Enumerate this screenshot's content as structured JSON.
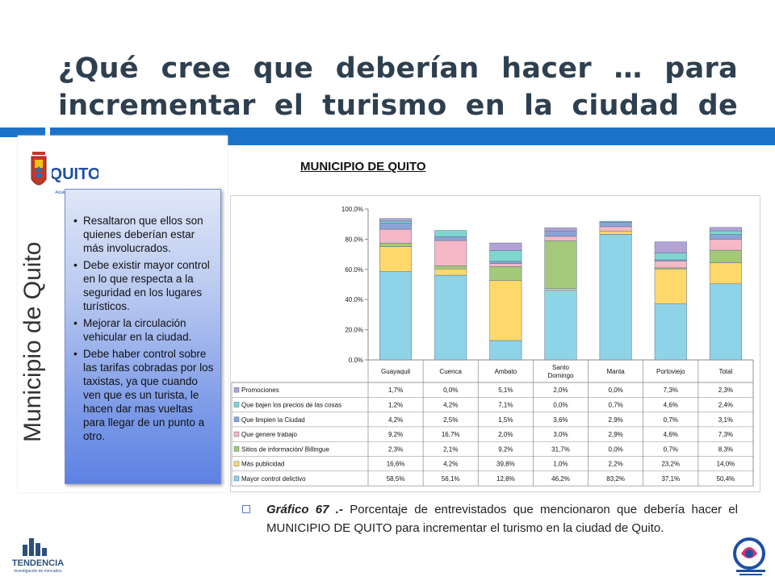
{
  "title": "¿Qué cree que deberían hacer … para incrementar el turismo en la ciudad de Quito?",
  "sidebar": {
    "logo_text": "QUITO",
    "logo_subtext": "Alcaldía Metropolitana",
    "vertical_label": "Municipio de Quito",
    "bullets": [
      "Resaltaron que ellos son quienes deberían estar más involucrados.",
      "Debe existir mayor control en lo que respecta a la seguridad en los lugares turísticos.",
      "Mejorar la circulación vehicular en la ciudad.",
      "Debe haber control sobre las tarifas cobradas por los taxistas, ya que cuando ven que es un turista, le hacen dar mas vueltas para llegar de un punto a otro."
    ]
  },
  "chart_heading": "MUNICIPIO DE QUITO",
  "caption": {
    "label": "Gráfico 67 .-",
    "text": " Porcentaje de entrevistados que mencionaron que debería hacer el MUNICIPIO DE QUITO para incrementar el turismo en la ciudad de Quito."
  },
  "footer": {
    "brand": "TENDENCIA",
    "brand_sub": "investigación de mercados"
  },
  "colors": {
    "title": "#2e3f4f",
    "band": "#1a73c8"
  },
  "chart_data": {
    "type": "bar",
    "stacked": true,
    "categories": [
      "Guayaquil",
      "Cuenca",
      "Ambato",
      "Santo Domingo",
      "Manta",
      "Portoviejo",
      "Total"
    ],
    "ylim": [
      0,
      100
    ],
    "yticks": [
      "0.0%",
      "20.0%",
      "40.0%",
      "60.0%",
      "80.0%",
      "100.0%"
    ],
    "grid": false,
    "legend": "table-below",
    "series": [
      {
        "name": "Mayor control delictivo",
        "color": "#8fd3e8",
        "values": [
          58.5,
          56.1,
          12.8,
          46.2,
          83.2,
          37.1,
          50.4
        ],
        "labels": [
          "58,5%",
          "56,1%",
          "12,8%",
          "46,2%",
          "83,2%",
          "37,1%",
          "50,4%"
        ]
      },
      {
        "name": "Más publicidad",
        "color": "#ffd86b",
        "values": [
          16.6,
          4.2,
          39.8,
          1.0,
          2.2,
          23.2,
          14.0
        ],
        "labels": [
          "16,6%",
          "4,2%",
          "39,8%",
          "1,0%",
          "2,2%",
          "23,2%",
          "14,0%"
        ]
      },
      {
        "name": "Sitios de información/ Billingue",
        "color": "#a5c97a",
        "values": [
          2.3,
          2.1,
          9.2,
          31.7,
          0.0,
          0.7,
          8.3
        ],
        "labels": [
          "2,3%",
          "2,1%",
          "9,2%",
          "31,7%",
          "0,0%",
          "0,7%",
          "8,3%"
        ]
      },
      {
        "name": "Que genere trabajo",
        "color": "#f6b8c6",
        "values": [
          9.2,
          16.7,
          2.0,
          3.0,
          2.9,
          4.6,
          7.3
        ],
        "labels": [
          "9,2%",
          "16,7%",
          "2,0%",
          "3,0%",
          "2,9%",
          "4,6%",
          "7,3%"
        ]
      },
      {
        "name": "Que limpien la Ciudad",
        "color": "#8aa4d8",
        "values": [
          4.2,
          2.5,
          1.5,
          3.6,
          2.9,
          0.7,
          3.1
        ],
        "labels": [
          "4,2%",
          "2,5%",
          "1,5%",
          "3,6%",
          "2,9%",
          "0,7%",
          "3,1%"
        ]
      },
      {
        "name": "Que bajen los precios de las cosas",
        "color": "#7fd6cf",
        "values": [
          1.2,
          4.2,
          7.1,
          0.0,
          0.7,
          4.6,
          2.4
        ],
        "labels": [
          "1,2%",
          "4,2%",
          "7,1%",
          "0,0%",
          "0,7%",
          "4,6%",
          "2,4%"
        ]
      },
      {
        "name": "Promociones",
        "color": "#b3a2d6",
        "values": [
          1.7,
          0.0,
          5.1,
          2.0,
          0.0,
          7.3,
          2.3
        ],
        "labels": [
          "1,7%",
          "0,0%",
          "5,1%",
          "2,0%",
          "0,0%",
          "7,3%",
          "2,3%"
        ]
      }
    ]
  }
}
